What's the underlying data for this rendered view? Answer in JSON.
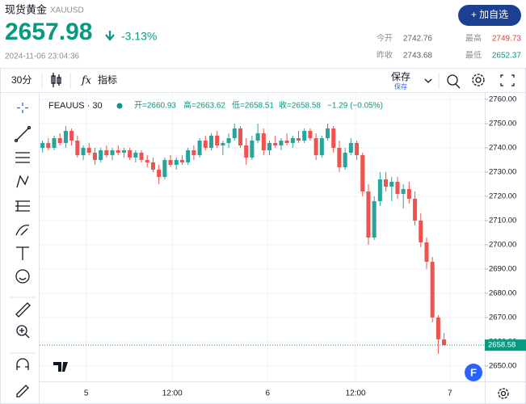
{
  "header": {
    "name": "现货黄金",
    "symbol": "XAUUSD",
    "price": "2657.98",
    "change": "-3.13%",
    "timestamp": "2024-11-06 23:04:36",
    "button": "+ 加自选",
    "stats": [
      {
        "label": "今开",
        "value": "2742.76"
      },
      {
        "label": "最高",
        "value": "2749.73"
      },
      {
        "label": "昨收",
        "value": "2743.68"
      },
      {
        "label": "最低",
        "value": "2652.37"
      }
    ]
  },
  "toolbar": {
    "interval": "30分",
    "indicators": "指标",
    "save": "保存",
    "save_sub": "保存"
  },
  "chart_data": {
    "type": "candlestick",
    "symbol": "FEAUUS · 30",
    "ohlc_legend": [
      "开=2660.93",
      "高=2663.62",
      "低=2658.51",
      "收=2658.58",
      "−1.29 (−0.05%)"
    ],
    "up_color": "#26a69a",
    "down_color": "#ef5350",
    "grid": true,
    "candles": [
      [
        2740,
        2743,
        2738,
        2742
      ],
      [
        2742,
        2744,
        2739,
        2740
      ],
      [
        2740,
        2745,
        2739,
        2744
      ],
      [
        2744,
        2746,
        2741,
        2742
      ],
      [
        2742,
        2749,
        2740,
        2747
      ],
      [
        2747,
        2748,
        2741,
        2743
      ],
      [
        2743,
        2745,
        2736,
        2737
      ],
      [
        2737,
        2741,
        2735,
        2740
      ],
      [
        2740,
        2742,
        2737,
        2738
      ],
      [
        2738,
        2740,
        2733,
        2735
      ],
      [
        2735,
        2740,
        2734,
        2739
      ],
      [
        2739,
        2741,
        2736,
        2737
      ],
      [
        2737,
        2740,
        2735,
        2739
      ],
      [
        2739,
        2741,
        2737,
        2738
      ],
      [
        2738,
        2740,
        2736,
        2739
      ],
      [
        2739,
        2740,
        2735,
        2736
      ],
      [
        2736,
        2739,
        2734,
        2738
      ],
      [
        2738,
        2739,
        2734,
        2735
      ],
      [
        2735,
        2737,
        2732,
        2734
      ],
      [
        2734,
        2736,
        2730,
        2731
      ],
      [
        2731,
        2733,
        2725,
        2728
      ],
      [
        2728,
        2736,
        2727,
        2735
      ],
      [
        2735,
        2737,
        2732,
        2733
      ],
      [
        2733,
        2736,
        2731,
        2735
      ],
      [
        2735,
        2737,
        2733,
        2734
      ],
      [
        2734,
        2740,
        2733,
        2739
      ],
      [
        2739,
        2741,
        2735,
        2737
      ],
      [
        2737,
        2744,
        2736,
        2743
      ],
      [
        2743,
        2745,
        2739,
        2740
      ],
      [
        2740,
        2746,
        2739,
        2745
      ],
      [
        2745,
        2747,
        2740,
        2741
      ],
      [
        2741,
        2743,
        2737,
        2742
      ],
      [
        2742,
        2746,
        2740,
        2744
      ],
      [
        2744,
        2750,
        2743,
        2748
      ],
      [
        2748,
        2749,
        2740,
        2741
      ],
      [
        2741,
        2744,
        2733,
        2736
      ],
      [
        2736,
        2745,
        2735,
        2743
      ],
      [
        2743,
        2750,
        2742,
        2746
      ],
      [
        2746,
        2748,
        2737,
        2739
      ],
      [
        2739,
        2743,
        2737,
        2742
      ],
      [
        2742,
        2745,
        2740,
        2741
      ],
      [
        2741,
        2744,
        2739,
        2743
      ],
      [
        2743,
        2746,
        2741,
        2742
      ],
      [
        2742,
        2745,
        2740,
        2744
      ],
      [
        2744,
        2747,
        2742,
        2743
      ],
      [
        2743,
        2748,
        2742,
        2747
      ],
      [
        2747,
        2748,
        2743,
        2744
      ],
      [
        2744,
        2746,
        2735,
        2737
      ],
      [
        2737,
        2745,
        2736,
        2744
      ],
      [
        2744,
        2750,
        2743,
        2748
      ],
      [
        2748,
        2749,
        2738,
        2740
      ],
      [
        2740,
        2743,
        2730,
        2732
      ],
      [
        2732,
        2740,
        2731,
        2738
      ],
      [
        2738,
        2744,
        2737,
        2742
      ],
      [
        2742,
        2743,
        2735,
        2737
      ],
      [
        2737,
        2738,
        2720,
        2722
      ],
      [
        2722,
        2725,
        2700,
        2703
      ],
      [
        2703,
        2720,
        2702,
        2718
      ],
      [
        2718,
        2730,
        2716,
        2727
      ],
      [
        2727,
        2730,
        2722,
        2724
      ],
      [
        2724,
        2728,
        2718,
        2726
      ],
      [
        2726,
        2728,
        2719,
        2721
      ],
      [
        2721,
        2725,
        2715,
        2723
      ],
      [
        2723,
        2726,
        2717,
        2719
      ],
      [
        2719,
        2722,
        2708,
        2710
      ],
      [
        2710,
        2713,
        2699,
        2701
      ],
      [
        2701,
        2703,
        2690,
        2693
      ],
      [
        2693,
        2695,
        2668,
        2670
      ],
      [
        2670,
        2671,
        2655,
        2661
      ],
      [
        2660.93,
        2663.62,
        2658.51,
        2658.58
      ]
    ],
    "xlim": [
      -0.5,
      76
    ],
    "xticks": [
      {
        "value": 7.5,
        "label": "5"
      },
      {
        "value": 22.3,
        "label": "12:00"
      },
      {
        "value": 38.7,
        "label": "6"
      },
      {
        "value": 53.8,
        "label": "12:00"
      },
      {
        "value": 70,
        "label": "7"
      }
    ],
    "ylim": [
      2644.3,
      2762
    ],
    "yticks": [
      {
        "value": 2650,
        "label": "2650.00"
      },
      {
        "value": 2660,
        "label": "2660.00"
      },
      {
        "value": 2670,
        "label": "2670.00"
      },
      {
        "value": 2680,
        "label": "2680.00"
      },
      {
        "value": 2690,
        "label": "2690.00"
      },
      {
        "value": 2700,
        "label": "2700.00"
      },
      {
        "value": 2710,
        "label": "2710.00"
      },
      {
        "value": 2720,
        "label": "2720.00"
      },
      {
        "value": 2730,
        "label": "2730.00"
      },
      {
        "value": 2740,
        "label": "2740.00"
      },
      {
        "value": 2750,
        "label": "2750.00"
      },
      {
        "value": 2760,
        "label": "2760.00"
      }
    ],
    "last_price_label": "2658.58"
  }
}
